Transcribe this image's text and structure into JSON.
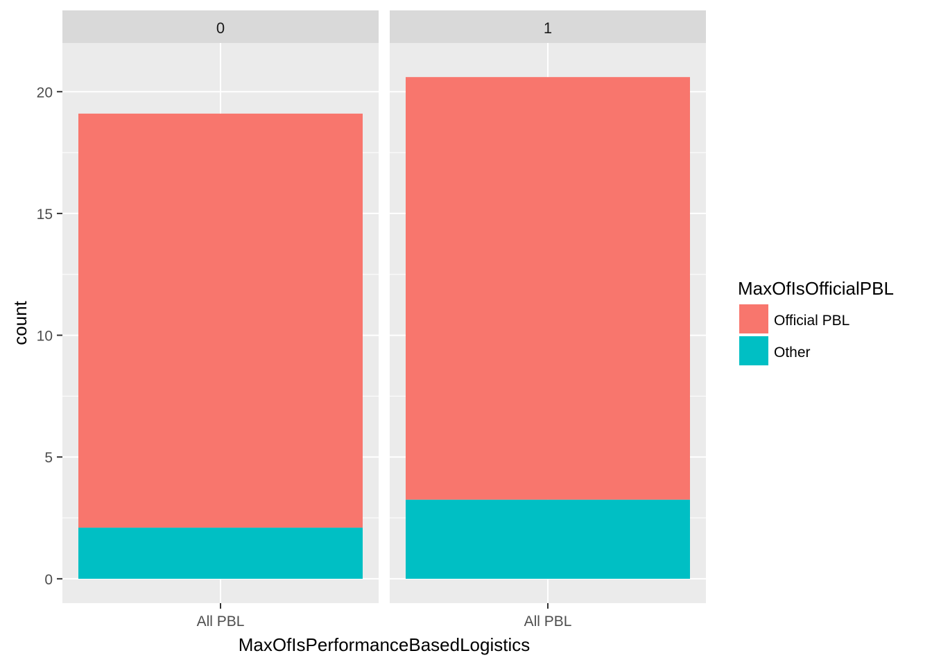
{
  "chart_data": {
    "type": "bar",
    "stacked": true,
    "facet_variable": "MaxOfIsPerformanceBasedLogistics",
    "facets": [
      {
        "label": "0",
        "category": "All PBL",
        "segments": [
          {
            "name": "Other",
            "value": 2.1
          },
          {
            "name": "Official PBL",
            "value": 17.0
          }
        ]
      },
      {
        "label": "1",
        "category": "All PBL",
        "segments": [
          {
            "name": "Other",
            "value": 3.25
          },
          {
            "name": "Official PBL",
            "value": 17.35
          }
        ]
      }
    ],
    "xlabel": "MaxOfIsPerformanceBasedLogistics",
    "ylabel": "count",
    "ylim": [
      -1,
      22
    ],
    "yticks": [
      0,
      5,
      10,
      15,
      20
    ],
    "ytick_labels": [
      "0",
      "5",
      "10",
      "15",
      "20"
    ],
    "grid": true,
    "legend": {
      "title": "MaxOfIsOfficialPBL",
      "placement": "right",
      "entries": [
        {
          "name": "Official PBL",
          "color": "#F8766D"
        },
        {
          "name": "Other",
          "color": "#00BFC4"
        }
      ]
    },
    "colors": {
      "Official PBL": "#F8766D",
      "Other": "#00BFC4",
      "panel_background": "#EBEBEB",
      "strip_background": "#D9D9D9",
      "grid_line": "#FFFFFF",
      "text": "#4D4D4D"
    }
  }
}
